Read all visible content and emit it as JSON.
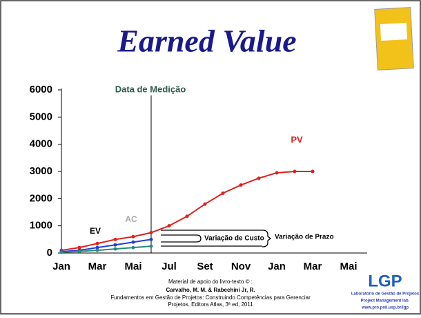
{
  "slide": {
    "title": "Earned Value",
    "footer": [
      "Material de apoio do livro-texto © :",
      "Carvalho, M. M. & Rabechini Jr, R.",
      "Fundamentos em Gestão de Projetos: Construindo Competências para Gerenciar",
      "Projetos. Editora Atlas, 3ª ed, 2011"
    ],
    "logo": {
      "name": "LGP",
      "lines": [
        "Laboratório de Gestão de Projetos",
        "Project Management lab.",
        "www.pro.poli.usp.br/lgp"
      ]
    }
  },
  "chart_data": {
    "type": "line",
    "categories": [
      "Jan",
      null,
      "Mar",
      null,
      "Mai",
      null,
      "Jul",
      null,
      "Set",
      null,
      "Nov",
      null,
      "Jan",
      null,
      "Mar",
      null,
      "Mai"
    ],
    "series": [
      {
        "name": "PV",
        "color": "#e0201b",
        "values": [
          100,
          200,
          350,
          500,
          600,
          750,
          1000,
          1350,
          1800,
          2200,
          2500,
          2750,
          2950,
          3000,
          3000,
          null,
          null
        ]
      },
      {
        "name": "AC",
        "color": "#1f3fd6",
        "values": [
          50,
          100,
          200,
          300,
          400,
          500,
          null,
          null,
          null,
          null,
          null,
          null,
          null,
          null,
          null,
          null,
          null
        ]
      },
      {
        "name": "EV",
        "color": "#2a8a7a",
        "values": [
          30,
          60,
          100,
          150,
          200,
          250,
          null,
          null,
          null,
          null,
          null,
          null,
          null,
          null,
          null,
          null,
          null
        ]
      }
    ],
    "ylim": [
      0,
      6000
    ],
    "yticks": [
      0,
      1000,
      2000,
      3000,
      4000,
      5000,
      6000
    ],
    "annotations": {
      "measurement_date": "Data de Medição",
      "cost_variance": "Variação de Custo",
      "schedule_variance": "Variação de Prazo"
    }
  }
}
